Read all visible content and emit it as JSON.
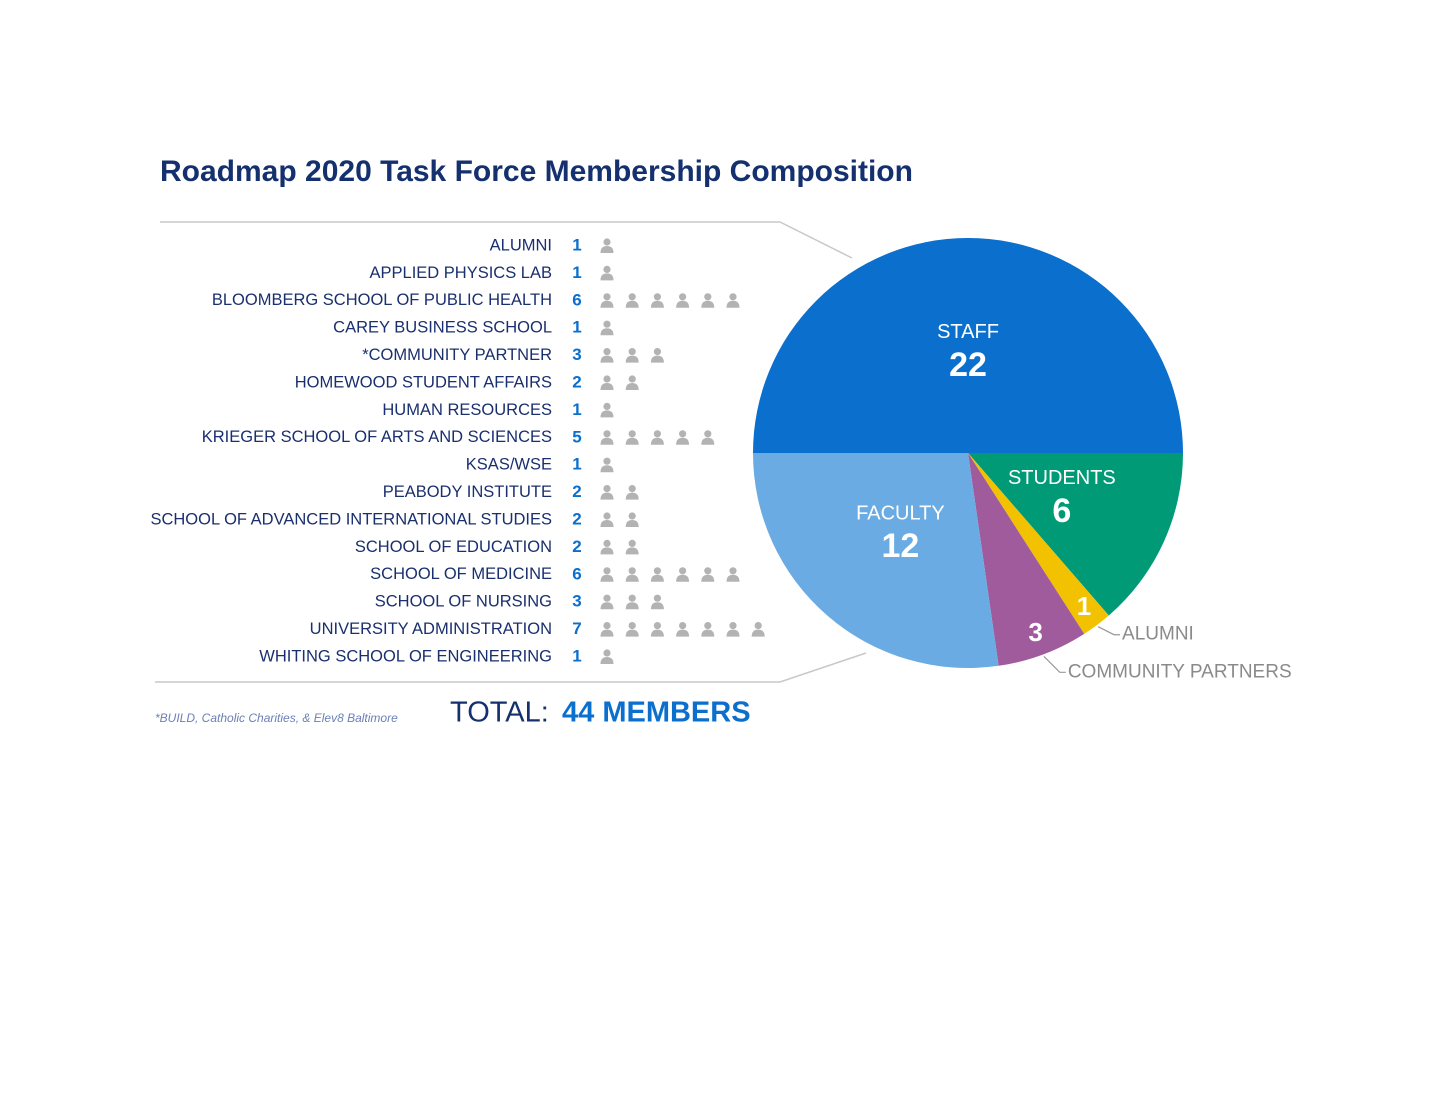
{
  "title": "Roadmap 2020 Task Force Membership Composition",
  "footnote": "*BUILD, Catholic Charities, & Elev8 Baltimore",
  "total_prefix": "TOTAL:",
  "total": "44 MEMBERS",
  "chart_data": [
    {
      "type": "pictograph",
      "categories": [
        "ALUMNI",
        "APPLIED PHYSICS LAB",
        "BLOOMBERG SCHOOL OF PUBLIC HEALTH",
        "CAREY BUSINESS SCHOOL",
        "*COMMUNITY PARTNER",
        "HOMEWOOD STUDENT AFFAIRS",
        "HUMAN RESOURCES",
        "KRIEGER SCHOOL OF ARTS AND SCIENCES",
        "KSAS/WSE",
        "PEABODY INSTITUTE",
        "SCHOOL OF ADVANCED INTERNATIONAL STUDIES",
        "SCHOOL OF EDUCATION",
        "SCHOOL OF MEDICINE",
        "SCHOOL OF NURSING",
        "UNIVERSITY ADMINISTRATION",
        "WHITING SCHOOL OF ENGINEERING"
      ],
      "values": [
        1,
        1,
        6,
        1,
        3,
        2,
        1,
        5,
        1,
        2,
        2,
        2,
        6,
        3,
        7,
        1
      ],
      "color": "#0b6fce",
      "icon_color": "#b3b3b3"
    },
    {
      "type": "pie",
      "categories": [
        "STAFF",
        "STUDENTS",
        "ALUMNI",
        "COMMUNITY PARTNERS",
        "FACULTY"
      ],
      "values": [
        22,
        6,
        1,
        3,
        12
      ],
      "colors": [
        "#0b6fce",
        "#009a77",
        "#f2c200",
        "#a05b9c",
        "#6aabe3"
      ]
    }
  ]
}
